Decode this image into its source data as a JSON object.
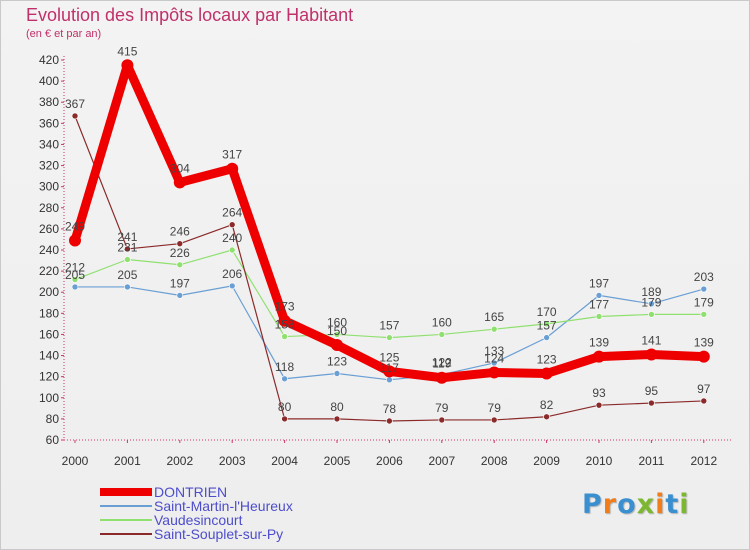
{
  "title": "Evolution des Impôts locaux par Habitant",
  "subtitle": "(en € et par an)",
  "logo": {
    "text": "Proxiti",
    "letter_colors": [
      "#3a8fd0",
      "#f07d1a",
      "#3a8fd0",
      "#7cb82f",
      "#f07d1a",
      "#3a8fd0",
      "#7cb82f"
    ]
  },
  "chart_data": {
    "type": "line",
    "title": "Evolution des Impôts locaux par Habitant",
    "ylabel": "(en € et par an)",
    "xlabel": "",
    "categories": [
      "2000",
      "2001",
      "2002",
      "2003",
      "2004",
      "2005",
      "2006",
      "2007",
      "2008",
      "2009",
      "2010",
      "2011",
      "2012"
    ],
    "ylim": [
      60,
      420
    ],
    "ytick_step": 20,
    "grid": false,
    "legend_position": "bottom-left",
    "series": [
      {
        "name": "DONTRIEN",
        "color": "#ee0000",
        "emphasis": true,
        "values": [
          249,
          415,
          304,
          317,
          173,
          150,
          125,
          119,
          124,
          123,
          139,
          141,
          139
        ]
      },
      {
        "name": "Saint-Martin-l'Heureux",
        "color": "#6a9fd4",
        "emphasis": false,
        "values": [
          205,
          205,
          197,
          206,
          118,
          123,
          117,
          122,
          133,
          157,
          197,
          189,
          203
        ]
      },
      {
        "name": "Vaudesincourt",
        "color": "#90e070",
        "emphasis": false,
        "values": [
          212,
          231,
          226,
          240,
          158,
          160,
          157,
          160,
          165,
          170,
          177,
          179,
          179
        ]
      },
      {
        "name": "Saint-Souplet-sur-Py",
        "color": "#8b2a2a",
        "emphasis": false,
        "values": [
          367,
          241,
          246,
          264,
          80,
          80,
          78,
          79,
          79,
          82,
          93,
          95,
          97
        ]
      }
    ]
  }
}
